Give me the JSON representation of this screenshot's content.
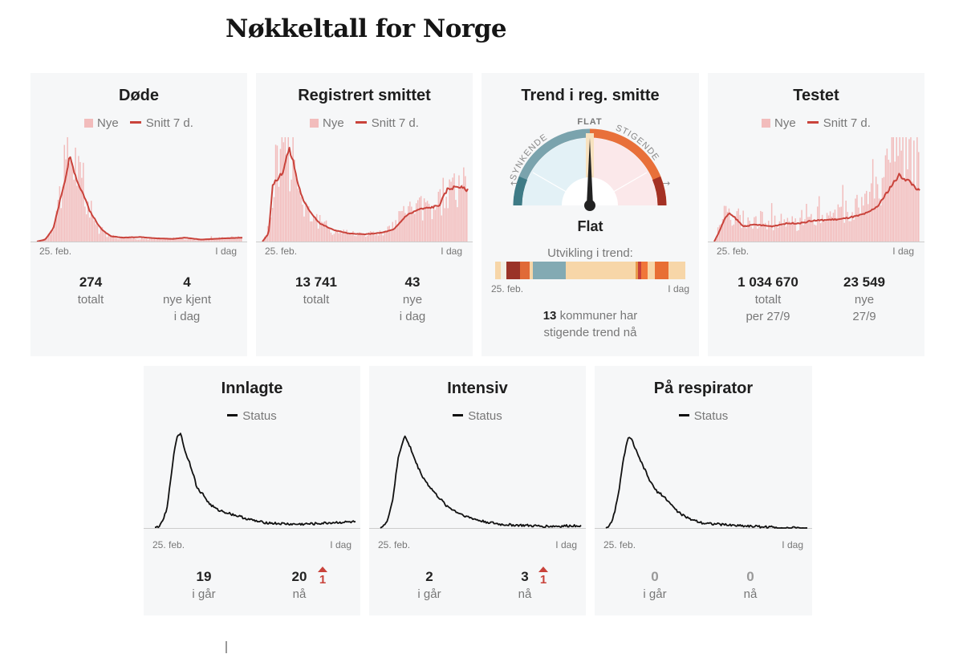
{
  "page": {
    "title": "Nøkkeltall for Norge"
  },
  "legend": {
    "new": "Nye",
    "avg": "Snitt 7 d.",
    "status": "Status"
  },
  "axis": {
    "start": "25. feb.",
    "end": "I dag"
  },
  "colors": {
    "bar": "#f2bcbc",
    "line": "#c9433b",
    "status": "#111111"
  },
  "cards": {
    "dode": {
      "title": "Døde",
      "total": "274",
      "total_label": "totalt",
      "new": "4",
      "new_label_1": "nye kjent",
      "new_label_2": "i dag"
    },
    "smittet": {
      "title": "Registrert smittet",
      "total": "13 741",
      "total_label": "totalt",
      "new": "43",
      "new_label_1": "nye",
      "new_label_2": "i dag"
    },
    "trend": {
      "title": "Trend i reg. smitte",
      "gauge_flat": "FLAT",
      "gauge_down": "SYNKENDE",
      "gauge_up": "STIGENDE",
      "status": "Flat",
      "caption": "Utvikling i trend:",
      "count": "13",
      "foot_1": "kommuner har",
      "foot_2": "stigende trend nå"
    },
    "testet": {
      "title": "Testet",
      "total": "1 034 670",
      "total_label_1": "totalt",
      "total_label_2": "per 27/9",
      "new": "23 549",
      "new_label_1": "nye",
      "new_label_2": "27/9"
    },
    "innlagte": {
      "title": "Innlagte",
      "yesterday": "19",
      "yesterday_label": "i går",
      "now": "20",
      "now_label": "nå",
      "delta": "1"
    },
    "intensiv": {
      "title": "Intensiv",
      "yesterday": "2",
      "yesterday_label": "i går",
      "now": "3",
      "now_label": "nå",
      "delta": "1"
    },
    "respirator": {
      "title": "På respirator",
      "yesterday": "0",
      "yesterday_label": "i går",
      "now": "0",
      "now_label": "nå"
    }
  },
  "chart_data": [
    {
      "id": "dode",
      "type": "bar+line",
      "title": "Døde",
      "x_start": "25. feb.",
      "x_end": "I dag",
      "series": [
        {
          "name": "Nye",
          "kind": "bar",
          "anchors": [
            [
              0,
              0
            ],
            [
              0.04,
              0.5
            ],
            [
              0.07,
              2
            ],
            [
              0.1,
              6
            ],
            [
              0.13,
              10
            ],
            [
              0.16,
              14
            ],
            [
              0.19,
              12
            ],
            [
              0.21,
              9
            ],
            [
              0.24,
              6
            ],
            [
              0.27,
              4
            ],
            [
              0.3,
              2
            ],
            [
              0.34,
              1
            ],
            [
              0.4,
              0.6
            ],
            [
              0.5,
              0.5
            ],
            [
              0.6,
              0.3
            ],
            [
              0.7,
              0.5
            ],
            [
              0.78,
              0.3
            ],
            [
              0.85,
              0.4
            ],
            [
              0.92,
              0.6
            ],
            [
              1,
              0.6
            ]
          ]
        },
        {
          "name": "Snitt 7 d.",
          "kind": "line",
          "anchors": [
            [
              0,
              0
            ],
            [
              0.04,
              0.3
            ],
            [
              0.08,
              2
            ],
            [
              0.11,
              6
            ],
            [
              0.14,
              10
            ],
            [
              0.16,
              13
            ],
            [
              0.18,
              11
            ],
            [
              0.2,
              9
            ],
            [
              0.23,
              7
            ],
            [
              0.26,
              4.5
            ],
            [
              0.29,
              3
            ],
            [
              0.32,
              1.7
            ],
            [
              0.36,
              0.8
            ],
            [
              0.42,
              0.6
            ],
            [
              0.5,
              0.7
            ],
            [
              0.58,
              0.5
            ],
            [
              0.66,
              0.4
            ],
            [
              0.72,
              0.6
            ],
            [
              0.8,
              0.3
            ],
            [
              0.86,
              0.4
            ],
            [
              0.92,
              0.5
            ],
            [
              1,
              0.6
            ]
          ]
        }
      ],
      "ymax": 16
    },
    {
      "id": "smittet",
      "type": "bar+line",
      "title": "Registrert smittet",
      "x_start": "25. feb.",
      "x_end": "I dag",
      "series": [
        {
          "name": "Nye",
          "kind": "bar",
          "anchors": [
            [
              0,
              0
            ],
            [
              0.03,
              40
            ],
            [
              0.06,
              180
            ],
            [
              0.09,
              250
            ],
            [
              0.12,
              240
            ],
            [
              0.15,
              200
            ],
            [
              0.18,
              120
            ],
            [
              0.22,
              80
            ],
            [
              0.26,
              55
            ],
            [
              0.3,
              40
            ],
            [
              0.36,
              25
            ],
            [
              0.45,
              20
            ],
            [
              0.55,
              20
            ],
            [
              0.62,
              30
            ],
            [
              0.68,
              60
            ],
            [
              0.74,
              85
            ],
            [
              0.8,
              80
            ],
            [
              0.86,
              95
            ],
            [
              0.9,
              130
            ],
            [
              0.94,
              135
            ],
            [
              1,
              130
            ]
          ]
        },
        {
          "name": "Snitt 7 d.",
          "kind": "line",
          "anchors": [
            [
              0,
              0
            ],
            [
              0.03,
              20
            ],
            [
              0.05,
              140
            ],
            [
              0.08,
              160
            ],
            [
              0.1,
              175
            ],
            [
              0.12,
              215
            ],
            [
              0.13,
              230
            ],
            [
              0.15,
              200
            ],
            [
              0.17,
              150
            ],
            [
              0.2,
              100
            ],
            [
              0.24,
              70
            ],
            [
              0.28,
              45
            ],
            [
              0.34,
              30
            ],
            [
              0.42,
              20
            ],
            [
              0.5,
              18
            ],
            [
              0.58,
              22
            ],
            [
              0.64,
              30
            ],
            [
              0.7,
              65
            ],
            [
              0.76,
              80
            ],
            [
              0.82,
              85
            ],
            [
              0.86,
              90
            ],
            [
              0.9,
              130
            ],
            [
              0.95,
              138
            ],
            [
              1,
              128
            ]
          ]
        }
      ],
      "ymax": 260
    },
    {
      "id": "trend",
      "type": "gauge",
      "title": "Trend i reg. smitte",
      "value": "Flat",
      "needle": 0.0,
      "ticks": [
        "SYNKENDE",
        "FLAT",
        "STIGENDE"
      ],
      "history": [
        {
          "color": "#f7d6a8",
          "w": 3
        },
        {
          "color": "#f2efe5",
          "w": 3
        },
        {
          "color": "#9a3328",
          "w": 7
        },
        {
          "color": "#e06a37",
          "w": 5
        },
        {
          "color": "#f7d6a8",
          "w": 2
        },
        {
          "color": "#83aab3",
          "w": 17
        },
        {
          "color": "#f7d6a8",
          "w": 37
        },
        {
          "color": "#e89a4a",
          "w": 1
        },
        {
          "color": "#c8413a",
          "w": 2
        },
        {
          "color": "#f0763a",
          "w": 3
        },
        {
          "color": "#f7d6a8",
          "w": 4
        },
        {
          "color": "#e86e33",
          "w": 7
        },
        {
          "color": "#f7d6a8",
          "w": 9
        }
      ],
      "x_start": "25. feb.",
      "x_end": "I dag"
    },
    {
      "id": "testet",
      "type": "bar+line",
      "title": "Testet",
      "x_start": "25. feb.",
      "x_end": "I dag",
      "series": [
        {
          "name": "Nye",
          "kind": "bar",
          "anchors": [
            [
              0,
              0
            ],
            [
              0.03,
              5000
            ],
            [
              0.06,
              9000
            ],
            [
              0.1,
              6000
            ],
            [
              0.2,
              5500
            ],
            [
              0.3,
              5000
            ],
            [
              0.4,
              4500
            ],
            [
              0.5,
              6500
            ],
            [
              0.6,
              7000
            ],
            [
              0.7,
              9000
            ],
            [
              0.78,
              11000
            ],
            [
              0.83,
              15000
            ],
            [
              0.88,
              22000
            ],
            [
              0.92,
              26000
            ],
            [
              0.96,
              24000
            ],
            [
              1,
              22000
            ]
          ]
        },
        {
          "name": "Snitt 7 d.",
          "kind": "line",
          "anchors": [
            [
              0,
              0
            ],
            [
              0.02,
              2000
            ],
            [
              0.05,
              5500
            ],
            [
              0.07,
              7000
            ],
            [
              0.1,
              6000
            ],
            [
              0.14,
              3800
            ],
            [
              0.2,
              4200
            ],
            [
              0.28,
              3800
            ],
            [
              0.35,
              4500
            ],
            [
              0.42,
              4600
            ],
            [
              0.48,
              5200
            ],
            [
              0.55,
              5400
            ],
            [
              0.62,
              5600
            ],
            [
              0.7,
              6400
            ],
            [
              0.75,
              7200
            ],
            [
              0.8,
              9000
            ],
            [
              0.85,
              13000
            ],
            [
              0.9,
              16500
            ],
            [
              0.95,
              15000
            ],
            [
              0.98,
              13500
            ],
            [
              1,
              12500
            ]
          ]
        }
      ],
      "ymax": 26000
    },
    {
      "id": "innlagte",
      "type": "line",
      "title": "Innlagte",
      "series": [
        {
          "name": "Status",
          "anchors": [
            [
              0,
              0
            ],
            [
              0.03,
              10
            ],
            [
              0.06,
              60
            ],
            [
              0.09,
              220
            ],
            [
              0.11,
              300
            ],
            [
              0.13,
              310
            ],
            [
              0.15,
              250
            ],
            [
              0.17,
              220
            ],
            [
              0.19,
              180
            ],
            [
              0.21,
              130
            ],
            [
              0.24,
              110
            ],
            [
              0.27,
              80
            ],
            [
              0.31,
              60
            ],
            [
              0.36,
              50
            ],
            [
              0.41,
              40
            ],
            [
              0.46,
              30
            ],
            [
              0.52,
              20
            ],
            [
              0.6,
              15
            ],
            [
              0.7,
              12
            ],
            [
              0.8,
              14
            ],
            [
              0.9,
              18
            ],
            [
              1,
              20
            ]
          ]
        }
      ],
      "ymax": 320,
      "x_start": "25. feb.",
      "x_end": "I dag"
    },
    {
      "id": "intensiv",
      "type": "line",
      "title": "Intensiv",
      "series": [
        {
          "name": "Status",
          "anchors": [
            [
              0,
              0
            ],
            [
              0.03,
              5
            ],
            [
              0.06,
              30
            ],
            [
              0.09,
              80
            ],
            [
              0.12,
              104
            ],
            [
              0.15,
              90
            ],
            [
              0.18,
              72
            ],
            [
              0.21,
              58
            ],
            [
              0.24,
              48
            ],
            [
              0.28,
              37
            ],
            [
              0.33,
              25
            ],
            [
              0.38,
              18
            ],
            [
              0.44,
              12
            ],
            [
              0.5,
              8
            ],
            [
              0.6,
              4
            ],
            [
              0.7,
              3
            ],
            [
              0.8,
              2
            ],
            [
              0.9,
              2
            ],
            [
              1,
              3
            ]
          ]
        }
      ],
      "ymax": 110,
      "x_start": "25. feb.",
      "x_end": "I dag"
    },
    {
      "id": "respirator",
      "type": "line",
      "title": "På respirator",
      "series": [
        {
          "name": "Status",
          "anchors": [
            [
              0,
              0
            ],
            [
              0.03,
              5
            ],
            [
              0.06,
              30
            ],
            [
              0.09,
              70
            ],
            [
              0.11,
              88
            ],
            [
              0.13,
              85
            ],
            [
              0.16,
              70
            ],
            [
              0.19,
              58
            ],
            [
              0.22,
              45
            ],
            [
              0.25,
              36
            ],
            [
              0.28,
              32
            ],
            [
              0.31,
              26
            ],
            [
              0.35,
              17
            ],
            [
              0.4,
              10
            ],
            [
              0.48,
              5
            ],
            [
              0.6,
              3
            ],
            [
              0.7,
              2
            ],
            [
              0.8,
              1
            ],
            [
              0.9,
              0
            ],
            [
              1,
              0
            ]
          ]
        }
      ],
      "ymax": 95,
      "x_start": "25. feb.",
      "x_end": "I dag"
    }
  ]
}
